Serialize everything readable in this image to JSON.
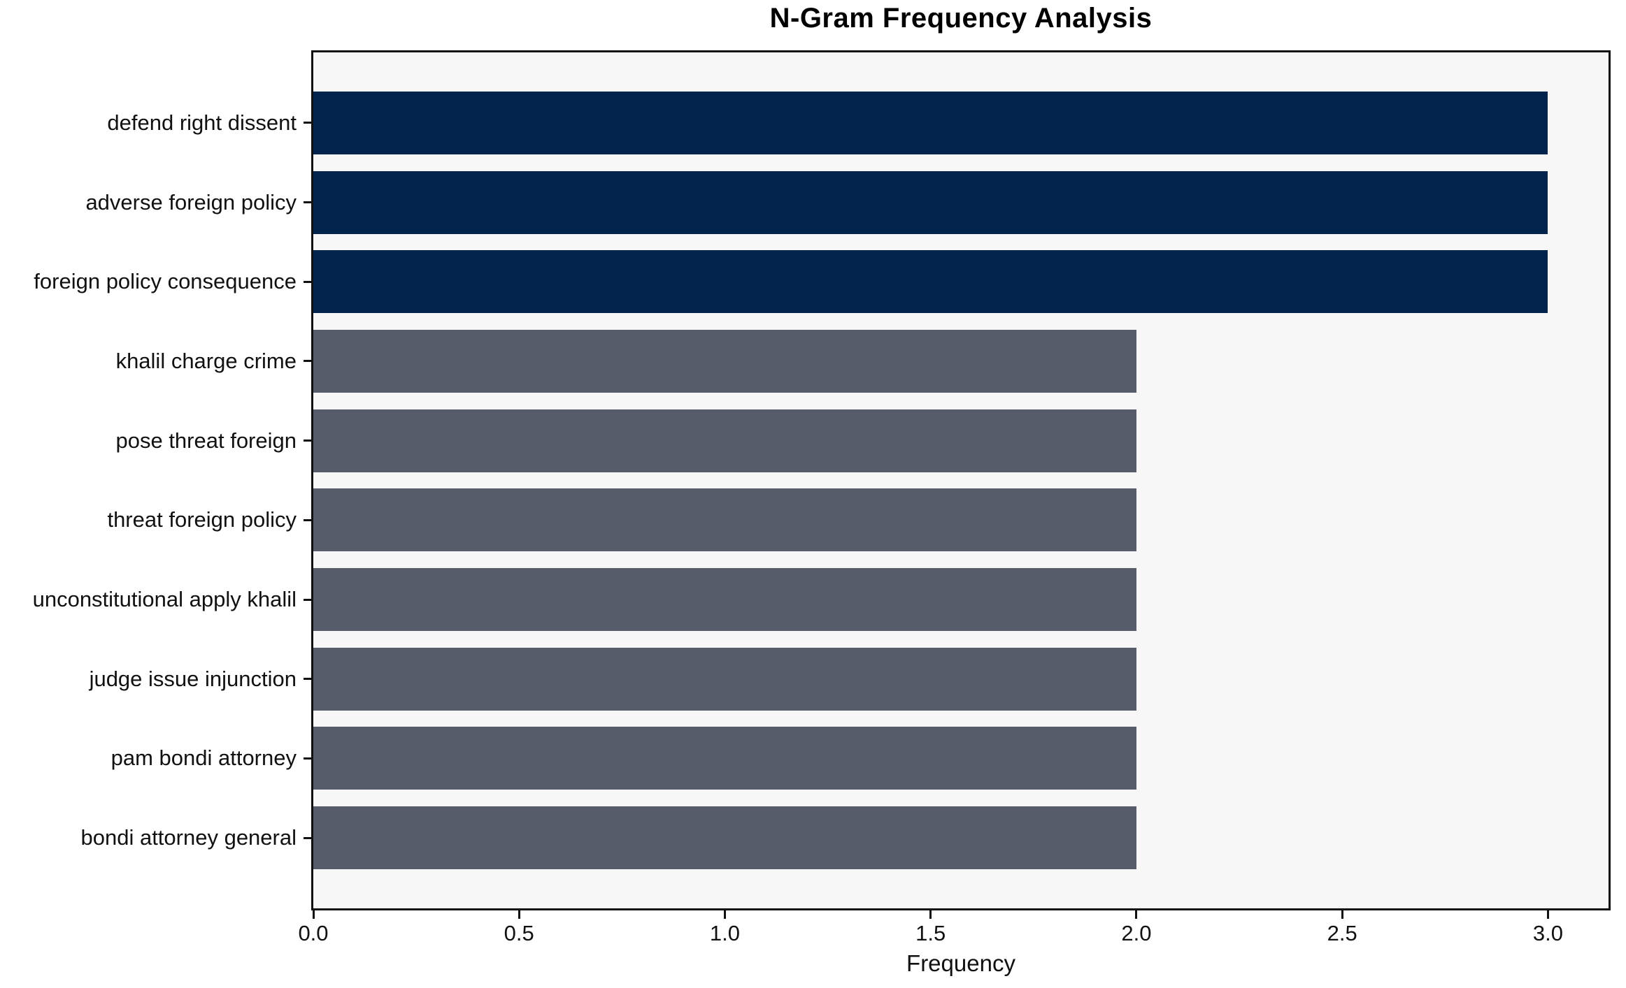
{
  "chart_data": {
    "type": "bar",
    "orientation": "horizontal",
    "title": "N-Gram Frequency Analysis",
    "xlabel": "Frequency",
    "ylabel": "",
    "categories": [
      "defend right dissent",
      "adverse foreign policy",
      "foreign policy consequence",
      "khalil charge crime",
      "pose threat foreign",
      "threat foreign policy",
      "unconstitutional apply khalil",
      "judge issue injunction",
      "pam bondi attorney",
      "bondi attorney general"
    ],
    "values": [
      3,
      3,
      3,
      2,
      2,
      2,
      2,
      2,
      2,
      2
    ],
    "bar_colors": [
      "#02234c",
      "#02234c",
      "#02234c",
      "#565c6a",
      "#565c6a",
      "#565c6a",
      "#565c6a",
      "#565c6a",
      "#565c6a",
      "#565c6a"
    ],
    "xlim": [
      0,
      3.147
    ],
    "xticks": [
      0.0,
      0.5,
      1.0,
      1.5,
      2.0,
      2.5,
      3.0
    ],
    "xtick_labels": [
      "0.0",
      "0.5",
      "1.0",
      "1.5",
      "2.0",
      "2.5",
      "3.0"
    ],
    "grid": false,
    "legend": "none",
    "colors": {
      "high_value_bar": "#02234c",
      "low_value_bar": "#565c6a",
      "plot_background": "#f7f7f8",
      "figure_background": "#ffffff",
      "spine": "#111111",
      "text": "#111111"
    }
  }
}
